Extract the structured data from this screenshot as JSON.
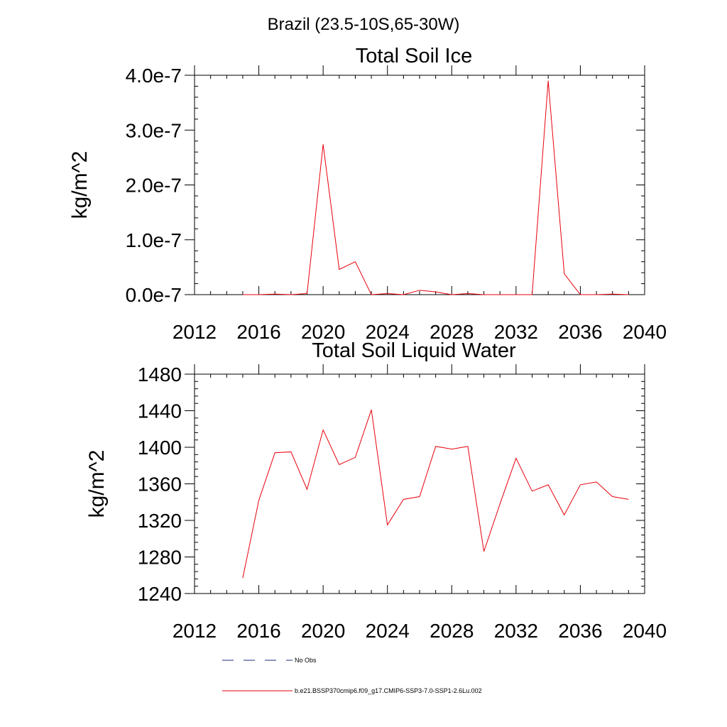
{
  "figure": {
    "suptitle": "Brazil (23.5-10S,65-30W)"
  },
  "chart_data": [
    {
      "type": "line",
      "title": "Total Soil Ice",
      "xlabel": "",
      "ylabel": "kg/m^2",
      "xlim": [
        2012,
        2040
      ],
      "ylim": [
        0,
        4e-07
      ],
      "xticks": [
        2012,
        2016,
        2020,
        2024,
        2028,
        2032,
        2036,
        2040
      ],
      "xtick_labels": [
        "2012",
        "2016",
        "2020",
        "2024",
        "2028",
        "2032",
        "2036",
        "2040"
      ],
      "yticks": [
        0,
        1e-07,
        2e-07,
        3e-07,
        4e-07
      ],
      "ytick_labels": [
        "0.0e-7",
        "1.0e-7",
        "2.0e-7",
        "3.0e-7",
        "4.0e-7"
      ],
      "grid": false,
      "x": [
        2015,
        2016,
        2017,
        2018,
        2019,
        2020,
        2021,
        2022,
        2023,
        2024,
        2025,
        2026,
        2027,
        2028,
        2029,
        2030,
        2031,
        2032,
        2033,
        2034,
        2035,
        2036,
        2037,
        2038,
        2039
      ],
      "series": [
        {
          "color": "#e8000b",
          "values": [
            0,
            0,
            1e-09,
            0,
            2e-09,
            2.74e-07,
            4.6e-08,
            6e-08,
            0,
            2e-09,
            0,
            8e-09,
            5e-09,
            0,
            2e-09,
            0,
            0,
            0,
            0,
            3.9e-07,
            3.8e-08,
            0,
            0,
            1e-09,
            0
          ]
        }
      ]
    },
    {
      "type": "line",
      "title": "Total Soil Liquid Water",
      "xlabel": "",
      "ylabel": "kg/m^2",
      "xlim": [
        2012,
        2040
      ],
      "ylim": [
        1240,
        1480
      ],
      "xticks": [
        2012,
        2016,
        2020,
        2024,
        2028,
        2032,
        2036,
        2040
      ],
      "xtick_labels": [
        "2012",
        "2016",
        "2020",
        "2024",
        "2028",
        "2032",
        "2036",
        "2040"
      ],
      "yticks": [
        1240,
        1280,
        1320,
        1360,
        1400,
        1440,
        1480
      ],
      "ytick_labels": [
        "1240",
        "1280",
        "1320",
        "1360",
        "1400",
        "1440",
        "1480"
      ],
      "grid": false,
      "x": [
        2015,
        2016,
        2017,
        2018,
        2019,
        2020,
        2021,
        2022,
        2023,
        2024,
        2025,
        2026,
        2027,
        2028,
        2029,
        2030,
        2031,
        2032,
        2033,
        2034,
        2035,
        2036,
        2037,
        2038,
        2039
      ],
      "series": [
        {
          "color": "#e8000b",
          "values": [
            1257,
            1342,
            1394,
            1395,
            1354,
            1419,
            1381,
            1389,
            1441,
            1315,
            1343,
            1346,
            1401,
            1398,
            1401,
            1286,
            1338,
            1388,
            1352,
            1359,
            1326,
            1359,
            1362,
            1346,
            1343
          ]
        }
      ]
    }
  ],
  "legend": {
    "placement": "bottom",
    "items": [
      {
        "label": "No Obs",
        "color": "#1f2a7a",
        "dash": "dashed"
      },
      {
        "label": "b.e21.BSSP370cmip6.f09_g17.CMIP6-SSP3-7.0-SSP1-2.6Lu.002",
        "color": "#e8000b",
        "dash": "solid"
      }
    ]
  }
}
